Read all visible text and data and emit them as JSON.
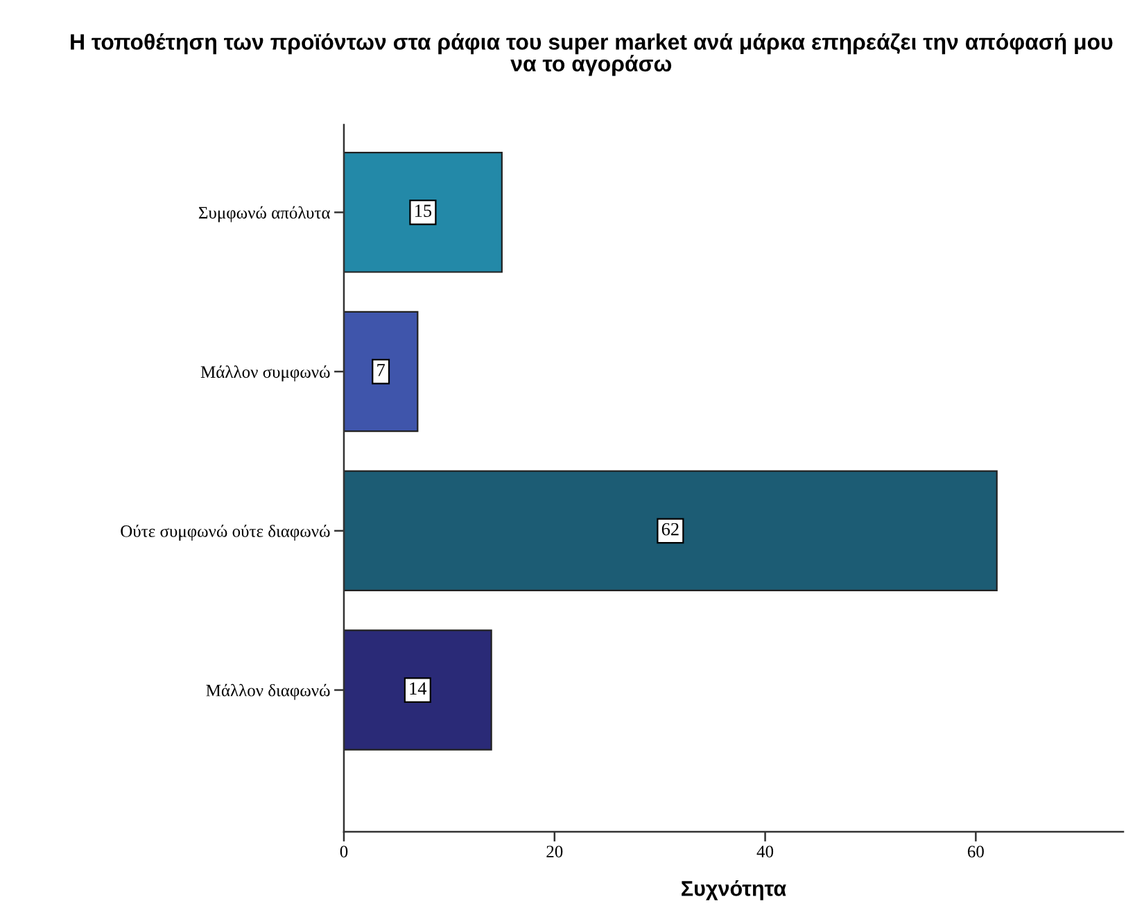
{
  "chart_data": {
    "type": "bar",
    "orientation": "horizontal",
    "title": "Η τοποθέτηση των προϊόντων στα ράφια του super market ανά μάρκα επηρεάζει την απόφασή μου να το αγοράσω",
    "xlabel": "Συχνότητα",
    "categories": [
      "Συμφωνώ απόλυτα",
      "Μάλλον συμφωνώ",
      "Ούτε συμφωνώ ούτε διαφωνώ",
      "Μάλλον διαφωνώ"
    ],
    "values": [
      15,
      7,
      62,
      14
    ],
    "colors": [
      "#2389a8",
      "#3f55ab",
      "#1c5c74",
      "#2a2a77"
    ],
    "xlim": [
      0,
      74
    ],
    "xticks": [
      0,
      20,
      40,
      60
    ],
    "data_labels": true
  }
}
